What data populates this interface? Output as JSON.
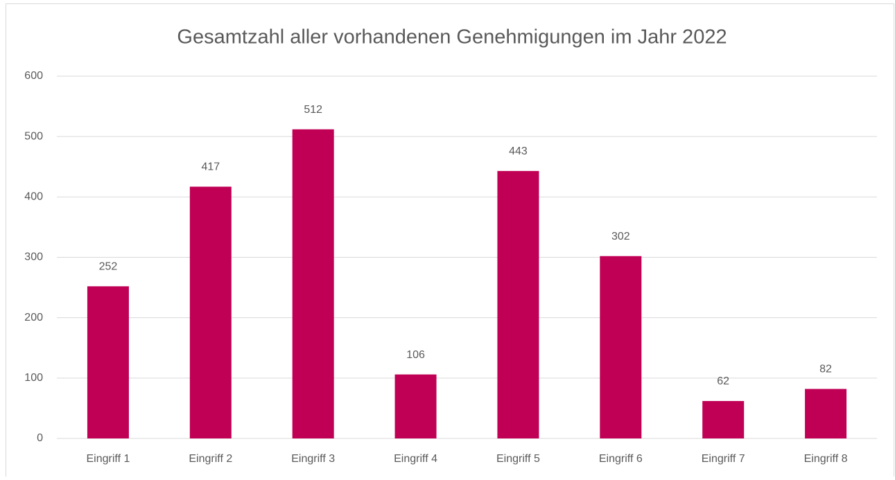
{
  "chart_data": {
    "type": "bar",
    "title": "Gesamtzahl aller vorhandenen Genehmigungen im Jahr 2022",
    "categories": [
      "Eingriff 1",
      "Eingriff 2",
      "Eingriff 3",
      "Eingriff 4",
      "Eingriff 5",
      "Eingriff 6",
      "Eingriff 7",
      "Eingriff 8"
    ],
    "values": [
      252,
      417,
      512,
      106,
      443,
      302,
      62,
      82
    ],
    "color": "#c00055",
    "ylim": [
      0,
      600
    ],
    "yticks": [
      0,
      100,
      200,
      300,
      400,
      500,
      600
    ],
    "grid": true
  }
}
